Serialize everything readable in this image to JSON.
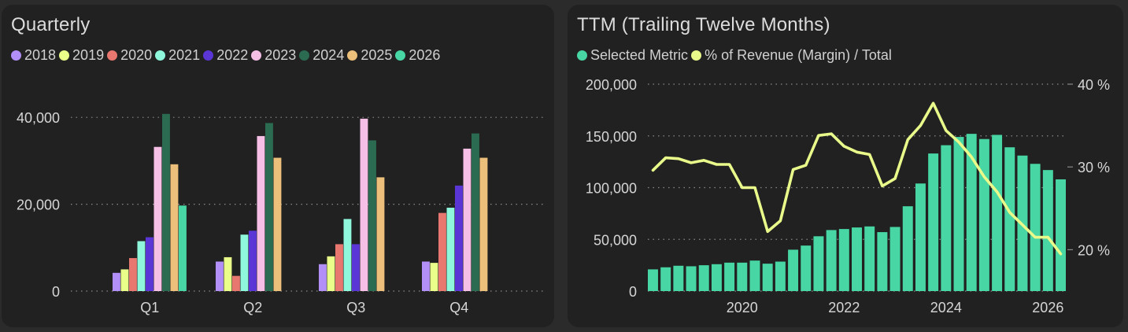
{
  "colors": {
    "background": "#2b2b2b",
    "panel": "#212121",
    "text": "#d6d6d6",
    "grid": "#8a8a8a",
    "bar_ttm": "#47d6a4",
    "line_margin": "#e9f98a"
  },
  "chart_data": [
    {
      "type": "bar",
      "title": "Quarterly",
      "categories": [
        "Q1",
        "Q2",
        "Q3",
        "Q4"
      ],
      "ylim": [
        0,
        50000
      ],
      "yticks": [
        0,
        20000,
        40000
      ],
      "ytick_labels": [
        "0",
        "20,000",
        "40,000"
      ],
      "legend_position": "top-left",
      "grid": true,
      "series": [
        {
          "name": "2018",
          "color": "#b28ef7",
          "values": [
            4200,
            6800,
            6200,
            6800
          ]
        },
        {
          "name": "2019",
          "color": "#eaff8a",
          "values": [
            5000,
            7800,
            8000,
            6500
          ]
        },
        {
          "name": "2020",
          "color": "#e8776f",
          "values": [
            7600,
            3500,
            10800,
            18000
          ]
        },
        {
          "name": "2021",
          "color": "#8ef7dc",
          "values": [
            11500,
            13000,
            16600,
            19200
          ]
        },
        {
          "name": "2022",
          "color": "#5b36d6",
          "values": [
            12400,
            13900,
            10800,
            24300
          ]
        },
        {
          "name": "2023",
          "color": "#f5bfe6",
          "values": [
            33200,
            35700,
            39700,
            32800
          ]
        },
        {
          "name": "2024",
          "color": "#2b6b52",
          "values": [
            40800,
            38700,
            34700,
            36300
          ]
        },
        {
          "name": "2025",
          "color": "#ecc07a",
          "values": [
            29200,
            30700,
            26200,
            30700
          ]
        },
        {
          "name": "2026",
          "color": "#47d6a4",
          "values": [
            19700,
            null,
            null,
            null
          ]
        }
      ]
    },
    {
      "type": "bar",
      "title": "TTM (Trailing Twelve Months)",
      "legend_position": "top-left",
      "grid": true,
      "x_range": [
        2018.15,
        2026.35
      ],
      "xticks": [
        2020,
        2022,
        2024,
        2026
      ],
      "xtick_labels": [
        "2020",
        "2022",
        "2024",
        "2026"
      ],
      "ylim": [
        0,
        200000
      ],
      "yticks": [
        0,
        50000,
        100000,
        150000,
        200000
      ],
      "ytick_labels": [
        "0",
        "50,000",
        "100,000",
        "150,000",
        "200,000"
      ],
      "y2lim": [
        15,
        40
      ],
      "y2ticks": [
        20,
        30,
        40
      ],
      "y2tick_labels": [
        "20 %",
        "30 %",
        "40 %"
      ],
      "x": [
        2018.25,
        2018.5,
        2018.75,
        2019.0,
        2019.25,
        2019.5,
        2019.75,
        2020.0,
        2020.25,
        2020.5,
        2020.75,
        2021.0,
        2021.25,
        2021.5,
        2021.75,
        2022.0,
        2022.25,
        2022.5,
        2022.75,
        2023.0,
        2023.25,
        2023.5,
        2023.75,
        2024.0,
        2024.25,
        2024.5,
        2024.75,
        2025.0,
        2025.25,
        2025.5,
        2025.75,
        2026.0,
        2026.25
      ],
      "series": [
        {
          "name": "Selected Metric",
          "kind": "bar",
          "axis": "left",
          "color": "#47d6a4",
          "values": [
            21000,
            23000,
            24500,
            24000,
            25000,
            26000,
            27500,
            27500,
            29500,
            26500,
            28500,
            40000,
            44000,
            53000,
            59000,
            60000,
            61500,
            62500,
            57000,
            62000,
            82000,
            104000,
            133000,
            141000,
            149000,
            152000,
            147000,
            151000,
            139000,
            131000,
            123000,
            117000,
            108000
          ]
        },
        {
          "name": "% of Revenue (Margin) / Total",
          "kind": "line",
          "axis": "right",
          "color": "#e9f98a",
          "values": [
            29.6,
            31.1,
            31.0,
            30.5,
            30.8,
            30.3,
            30.3,
            27.5,
            27.5,
            22.2,
            23.5,
            29.7,
            30.2,
            33.8,
            34.0,
            32.5,
            31.8,
            31.5,
            27.7,
            28.6,
            33.3,
            35.0,
            37.7,
            34.4,
            33.0,
            31.2,
            28.8,
            27.0,
            24.5,
            23.0,
            21.5,
            21.5,
            19.5
          ]
        }
      ]
    }
  ]
}
